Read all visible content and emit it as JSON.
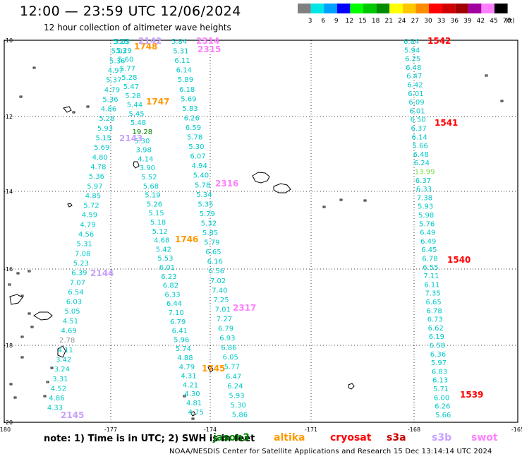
{
  "title": "12:00 — 23:59 UTC 12/06/2024",
  "subtitle": "12 hour collection of altimeter wave heights",
  "colorbar": {
    "unit": "(ft)",
    "ticks": [
      "3",
      "6",
      "9",
      "12",
      "15",
      "18",
      "21",
      "24",
      "27",
      "30",
      "33",
      "36",
      "39",
      "42",
      "45",
      "70"
    ],
    "colors": [
      "#808080",
      "#00e5e5",
      "#00a0ff",
      "#0000ff",
      "#00ff00",
      "#00c800",
      "#008c00",
      "#ffff00",
      "#ffc800",
      "#ff8c00",
      "#ff0000",
      "#d20000",
      "#a00000",
      "#a000a0",
      "#ff80ff",
      "#000000"
    ]
  },
  "map": {
    "lat_labels": [
      "-10",
      "-12",
      "-14",
      "-16",
      "-18",
      "-20"
    ],
    "lon_labels": [
      "-180",
      "-177",
      "-174",
      "-171",
      "-168",
      "-165"
    ],
    "colors": {
      "jason3": "#00c8c8",
      "altika": "#ff9900",
      "cryosat": "#ff0000",
      "s3a": "#c80000",
      "s3b": "#c8a0ff",
      "swot": "#ff80ff",
      "dark": "#008000",
      "grey": "#909090",
      "green": "#70dd40"
    },
    "track_labels": [
      {
        "text": "1748",
        "color": "altika"
      },
      {
        "text": "1747",
        "color": "altika"
      },
      {
        "text": "1746",
        "color": "altika"
      },
      {
        "text": "1745",
        "color": "altika"
      },
      {
        "text": "2142",
        "color": "s3b"
      },
      {
        "text": "2143",
        "color": "s3b"
      },
      {
        "text": "2144",
        "color": "s3b"
      },
      {
        "text": "2145",
        "color": "s3b"
      },
      {
        "text": "2314",
        "color": "swot"
      },
      {
        "text": "2315",
        "color": "swot"
      },
      {
        "text": "2316",
        "color": "swot"
      },
      {
        "text": "2317",
        "color": "swot"
      },
      {
        "text": "1542",
        "color": "cryosat"
      },
      {
        "text": "1541",
        "color": "cryosat"
      },
      {
        "text": "1540",
        "color": "cryosat"
      },
      {
        "text": "1539",
        "color": "cryosat"
      }
    ],
    "track_a": [
      {
        "text": "5.63",
        "color": "jason3"
      },
      {
        "text": "5.29",
        "color": "jason3"
      },
      {
        "text": "5.60",
        "color": "jason3"
      },
      {
        "text": "5.77",
        "color": "jason3"
      },
      {
        "text": "5.28",
        "color": "jason3"
      },
      {
        "text": "5.47",
        "color": "jason3"
      },
      {
        "text": "5.28",
        "color": "jason3"
      },
      {
        "text": "5.44",
        "color": "jason3"
      },
      {
        "text": "5.45",
        "color": "jason3"
      },
      {
        "text": "5.48",
        "color": "jason3"
      },
      {
        "text": "19.28",
        "color": "dark"
      },
      {
        "text": "5.30",
        "color": "jason3"
      },
      {
        "text": "3.98",
        "color": "jason3"
      },
      {
        "text": "4.14",
        "color": "jason3"
      },
      {
        "text": "3.90",
        "color": "jason3"
      },
      {
        "text": "5.52",
        "color": "jason3"
      },
      {
        "text": "5.68",
        "color": "jason3"
      },
      {
        "text": "5.19",
        "color": "jason3"
      },
      {
        "text": "5.26",
        "color": "jason3"
      },
      {
        "text": "5.15",
        "color": "jason3"
      },
      {
        "text": "5.18",
        "color": "jason3"
      },
      {
        "text": "5.12",
        "color": "jason3"
      },
      {
        "text": "4.68",
        "color": "jason3"
      },
      {
        "text": "5.42",
        "color": "jason3"
      },
      {
        "text": "5.53",
        "color": "jason3"
      },
      {
        "text": "6.01",
        "color": "jason3"
      },
      {
        "text": "6.23",
        "color": "jason3"
      },
      {
        "text": "6.82",
        "color": "jason3"
      },
      {
        "text": "6.33",
        "color": "jason3"
      },
      {
        "text": "6.44",
        "color": "jason3"
      },
      {
        "text": "7.10",
        "color": "jason3"
      },
      {
        "text": "6.79",
        "color": "jason3"
      },
      {
        "text": "6.41",
        "color": "jason3"
      },
      {
        "text": "5.96",
        "color": "jason3"
      },
      {
        "text": "5.74",
        "color": "jason3"
      },
      {
        "text": "4.88",
        "color": "jason3"
      },
      {
        "text": "4.79",
        "color": "jason3"
      },
      {
        "text": "4.31",
        "color": "jason3"
      },
      {
        "text": "4.21",
        "color": "jason3"
      },
      {
        "text": "4.30",
        "color": "jason3"
      },
      {
        "text": "4.81",
        "color": "jason3"
      },
      {
        "text": "4.75",
        "color": "jason3"
      }
    ],
    "track_b": [
      {
        "text": "5.23",
        "color": "jason3"
      },
      {
        "text": "5.03",
        "color": "jason3"
      },
      {
        "text": "5.36",
        "color": "jason3"
      },
      {
        "text": "4.97",
        "color": "jason3"
      },
      {
        "text": "5.37",
        "color": "jason3"
      },
      {
        "text": "4.79",
        "color": "jason3"
      },
      {
        "text": "5.36",
        "color": "jason3"
      },
      {
        "text": "4.86",
        "color": "jason3"
      },
      {
        "text": "5.28",
        "color": "jason3"
      },
      {
        "text": "5.93",
        "color": "jason3"
      },
      {
        "text": "5.15",
        "color": "jason3"
      },
      {
        "text": "5.69",
        "color": "jason3"
      },
      {
        "text": "4.80",
        "color": "jason3"
      },
      {
        "text": "4.78",
        "color": "jason3"
      },
      {
        "text": "5.36",
        "color": "jason3"
      },
      {
        "text": "5.97",
        "color": "jason3"
      },
      {
        "text": "4.85",
        "color": "jason3"
      },
      {
        "text": "5.72",
        "color": "jason3"
      },
      {
        "text": "4.59",
        "color": "jason3"
      },
      {
        "text": "4.79",
        "color": "jason3"
      },
      {
        "text": "4.56",
        "color": "jason3"
      },
      {
        "text": "5.31",
        "color": "jason3"
      },
      {
        "text": "7.08",
        "color": "jason3"
      },
      {
        "text": "5.23",
        "color": "jason3"
      },
      {
        "text": "6.39",
        "color": "jason3"
      },
      {
        "text": "7.07",
        "color": "jason3"
      },
      {
        "text": "6.54",
        "color": "jason3"
      },
      {
        "text": "6.03",
        "color": "jason3"
      },
      {
        "text": "5.05",
        "color": "jason3"
      },
      {
        "text": "4.51",
        "color": "jason3"
      },
      {
        "text": "4.69",
        "color": "jason3"
      },
      {
        "text": "2.78",
        "color": "grey"
      },
      {
        "text": "4.11",
        "color": "jason3"
      },
      {
        "text": "3.42",
        "color": "jason3"
      },
      {
        "text": "3.24",
        "color": "jason3"
      },
      {
        "text": "3.31",
        "color": "jason3"
      },
      {
        "text": "4.52",
        "color": "jason3"
      },
      {
        "text": "4.86",
        "color": "jason3"
      },
      {
        "text": "4.33",
        "color": "jason3"
      }
    ],
    "track_c": [
      {
        "text": "5.84",
        "color": "jason3"
      },
      {
        "text": "5.31",
        "color": "jason3"
      },
      {
        "text": "6.11",
        "color": "jason3"
      },
      {
        "text": "6.14",
        "color": "jason3"
      },
      {
        "text": "5.89",
        "color": "jason3"
      },
      {
        "text": "6.18",
        "color": "jason3"
      },
      {
        "text": "5.69",
        "color": "jason3"
      },
      {
        "text": "5.83",
        "color": "jason3"
      },
      {
        "text": "6.26",
        "color": "jason3"
      },
      {
        "text": "6.59",
        "color": "jason3"
      },
      {
        "text": "5.78",
        "color": "jason3"
      },
      {
        "text": "5.30",
        "color": "jason3"
      },
      {
        "text": "6.07",
        "color": "jason3"
      },
      {
        "text": "4.94",
        "color": "jason3"
      },
      {
        "text": "5.40",
        "color": "jason3"
      },
      {
        "text": "5.78",
        "color": "jason3"
      },
      {
        "text": "5.34",
        "color": "jason3"
      },
      {
        "text": "5.35",
        "color": "jason3"
      },
      {
        "text": "5.79",
        "color": "jason3"
      },
      {
        "text": "5.32",
        "color": "jason3"
      },
      {
        "text": "5.85",
        "color": "jason3"
      },
      {
        "text": "5.79",
        "color": "jason3"
      },
      {
        "text": "6.65",
        "color": "jason3"
      },
      {
        "text": "6.16",
        "color": "jason3"
      },
      {
        "text": "6.56",
        "color": "jason3"
      },
      {
        "text": "7.02",
        "color": "jason3"
      },
      {
        "text": "7.40",
        "color": "jason3"
      },
      {
        "text": "7.25",
        "color": "jason3"
      },
      {
        "text": "7.01",
        "color": "jason3"
      },
      {
        "text": "7.27",
        "color": "jason3"
      },
      {
        "text": "6.79",
        "color": "jason3"
      },
      {
        "text": "6.93",
        "color": "jason3"
      },
      {
        "text": "6.86",
        "color": "jason3"
      },
      {
        "text": "6.05",
        "color": "jason3"
      },
      {
        "text": "5.77",
        "color": "jason3"
      },
      {
        "text": "6.47",
        "color": "jason3"
      },
      {
        "text": "6.24",
        "color": "jason3"
      },
      {
        "text": "5.93",
        "color": "jason3"
      },
      {
        "text": "5.30",
        "color": "jason3"
      },
      {
        "text": "5.86",
        "color": "jason3"
      }
    ],
    "track_d": [
      {
        "text": "6.84",
        "color": "jason3"
      },
      {
        "text": "5.94",
        "color": "jason3"
      },
      {
        "text": "6.25",
        "color": "jason3"
      },
      {
        "text": "6.48",
        "color": "jason3"
      },
      {
        "text": "6.47",
        "color": "jason3"
      },
      {
        "text": "6.42",
        "color": "jason3"
      },
      {
        "text": "6.01",
        "color": "jason3"
      },
      {
        "text": "6.09",
        "color": "jason3"
      },
      {
        "text": "6.01",
        "color": "jason3"
      },
      {
        "text": "6.50",
        "color": "jason3"
      },
      {
        "text": "6.37",
        "color": "jason3"
      },
      {
        "text": "6.14",
        "color": "jason3"
      },
      {
        "text": "5.66",
        "color": "jason3"
      },
      {
        "text": "6.48",
        "color": "jason3"
      },
      {
        "text": "6.24",
        "color": "jason3"
      },
      {
        "text": "13.99",
        "color": "green"
      },
      {
        "text": "6.37",
        "color": "jason3"
      },
      {
        "text": "6.33",
        "color": "jason3"
      },
      {
        "text": "7.38",
        "color": "jason3"
      },
      {
        "text": "5.93",
        "color": "jason3"
      },
      {
        "text": "5.98",
        "color": "jason3"
      },
      {
        "text": "5.76",
        "color": "jason3"
      },
      {
        "text": "6.49",
        "color": "jason3"
      },
      {
        "text": "6.49",
        "color": "jason3"
      },
      {
        "text": "6.45",
        "color": "jason3"
      },
      {
        "text": "6.78",
        "color": "jason3"
      },
      {
        "text": "6.55",
        "color": "jason3"
      },
      {
        "text": "7.11",
        "color": "jason3"
      },
      {
        "text": "6.11",
        "color": "jason3"
      },
      {
        "text": "7.35",
        "color": "jason3"
      },
      {
        "text": "6.65",
        "color": "jason3"
      },
      {
        "text": "6.78",
        "color": "jason3"
      },
      {
        "text": "6.73",
        "color": "jason3"
      },
      {
        "text": "6.62",
        "color": "jason3"
      },
      {
        "text": "6.19",
        "color": "jason3"
      },
      {
        "text": "6.58",
        "color": "jason3"
      },
      {
        "text": "6.36",
        "color": "jason3"
      },
      {
        "text": "5.97",
        "color": "jason3"
      },
      {
        "text": "6.83",
        "color": "jason3"
      },
      {
        "text": "6.13",
        "color": "jason3"
      },
      {
        "text": "5.71",
        "color": "jason3"
      },
      {
        "text": "6.00",
        "color": "jason3"
      },
      {
        "text": "6.26",
        "color": "jason3"
      },
      {
        "text": "5.66",
        "color": "jason3"
      }
    ]
  },
  "note": "note:  1) Time is in UTC;  2) SWH is in feet",
  "missions": [
    {
      "text": "jason3",
      "color": "#008000"
    },
    {
      "text": "altika",
      "color": "#ff9900"
    },
    {
      "text": "cryosat",
      "color": "#ff0000"
    },
    {
      "text": "s3a",
      "color": "#c80000"
    },
    {
      "text": "s3b",
      "color": "#c8a0ff"
    },
    {
      "text": "swot",
      "color": "#ff80ff"
    }
  ],
  "credit": "NOAA/NESDIS Center for Satellite Applications and Research    15 Dec 13:14:14 UTC 2024"
}
